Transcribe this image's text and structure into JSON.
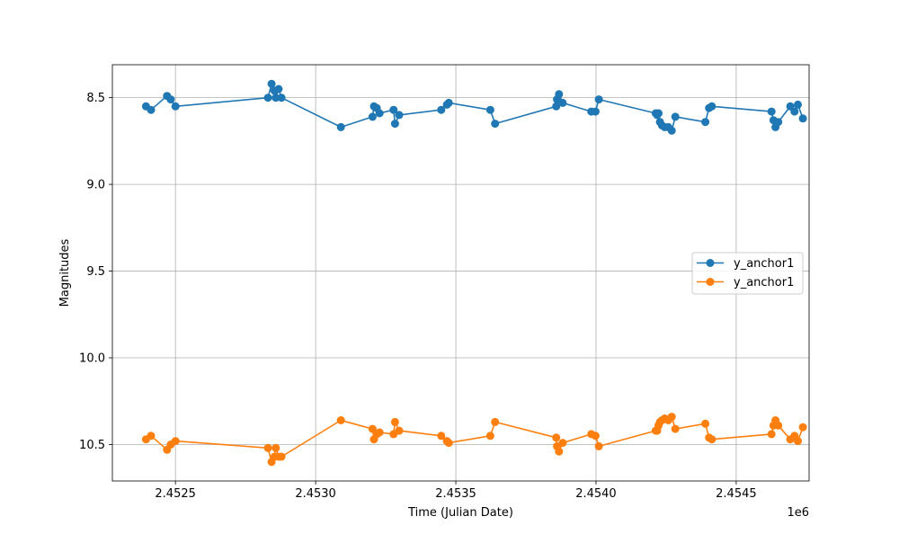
{
  "chart_data": {
    "type": "line",
    "xlabel": "Time (Julian Date)",
    "ylabel": "Magnitudes",
    "x_offset_label": "1e6",
    "xlim": [
      2452275,
      2454760
    ],
    "ylim": [
      10.71,
      8.31
    ],
    "y_inverted": true,
    "x_ticks": [
      2452500,
      2453000,
      2453500,
      2454000,
      2454500
    ],
    "x_tick_labels": [
      "2.4525",
      "2.4530",
      "2.4535",
      "2.4540",
      "2.4545"
    ],
    "y_ticks": [
      8.5,
      9.0,
      9.5,
      10.0,
      10.5
    ],
    "y_tick_labels": [
      "8.5",
      "9.0",
      "9.5",
      "10.0",
      "10.5"
    ],
    "grid": true,
    "legend_position": "center-right",
    "series": [
      {
        "name": "y_anchor1",
        "color": "#1f77b4",
        "x": [
          2452395,
          2452413,
          2452470,
          2452483,
          2452500,
          2452830,
          2452843,
          2452853,
          2452858,
          2452868,
          2452878,
          2453090,
          2453203,
          2453208,
          2453218,
          2453228,
          2453278,
          2453283,
          2453298,
          2453448,
          2453468,
          2453475,
          2453623,
          2453640,
          2453858,
          2453861,
          2453868,
          2453881,
          2453983,
          2453998,
          2454010,
          2454213,
          2454218,
          2454223,
          2454228,
          2454235,
          2454245,
          2454258,
          2454270,
          2454283,
          2454390,
          2454403,
          2454413,
          2454626,
          2454633,
          2454640,
          2454650,
          2454693,
          2454708,
          2454720,
          2454738
        ],
        "y": [
          8.55,
          8.57,
          8.49,
          8.51,
          8.55,
          8.5,
          8.42,
          8.46,
          8.5,
          8.45,
          8.5,
          8.67,
          8.61,
          8.55,
          8.56,
          8.59,
          8.57,
          8.65,
          8.6,
          8.57,
          8.54,
          8.53,
          8.57,
          8.65,
          8.55,
          8.51,
          8.48,
          8.53,
          8.58,
          8.58,
          8.51,
          8.59,
          8.6,
          8.59,
          8.64,
          8.66,
          8.67,
          8.67,
          8.69,
          8.61,
          8.64,
          8.56,
          8.55,
          8.58,
          8.63,
          8.67,
          8.64,
          8.55,
          8.58,
          8.54,
          8.62
        ]
      },
      {
        "name": "y_anchor1",
        "color": "#ff7f0e",
        "x": [
          2452395,
          2452413,
          2452470,
          2452483,
          2452500,
          2452830,
          2452843,
          2452853,
          2452858,
          2452868,
          2452878,
          2453090,
          2453203,
          2453208,
          2453218,
          2453228,
          2453278,
          2453283,
          2453298,
          2453448,
          2453468,
          2453475,
          2453623,
          2453640,
          2453858,
          2453861,
          2453868,
          2453881,
          2453983,
          2453998,
          2454010,
          2454213,
          2454218,
          2454223,
          2454228,
          2454235,
          2454245,
          2454258,
          2454270,
          2454283,
          2454390,
          2454403,
          2454413,
          2454626,
          2454633,
          2454640,
          2454650,
          2454693,
          2454708,
          2454720,
          2454738
        ],
        "y": [
          10.47,
          10.45,
          10.53,
          10.5,
          10.48,
          10.52,
          10.6,
          10.57,
          10.52,
          10.57,
          10.57,
          10.36,
          10.41,
          10.47,
          10.44,
          10.43,
          10.44,
          10.37,
          10.42,
          10.45,
          10.48,
          10.49,
          10.45,
          10.37,
          10.46,
          10.51,
          10.54,
          10.49,
          10.44,
          10.45,
          10.51,
          10.42,
          10.42,
          10.39,
          10.37,
          10.36,
          10.35,
          10.36,
          10.34,
          10.41,
          10.38,
          10.46,
          10.47,
          10.44,
          10.39,
          10.36,
          10.39,
          10.47,
          10.45,
          10.48,
          10.4
        ]
      }
    ]
  }
}
